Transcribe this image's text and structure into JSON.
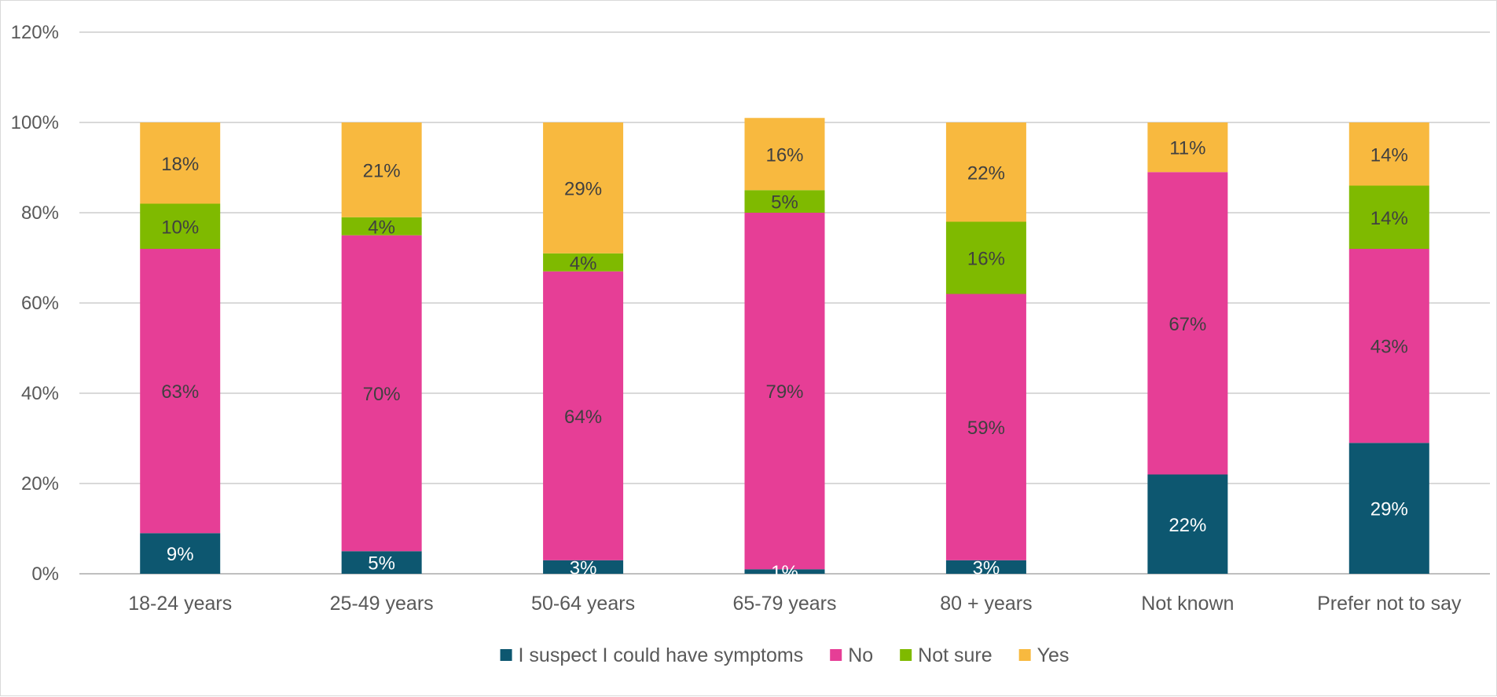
{
  "chart_data": {
    "type": "bar",
    "stacked": true,
    "categories": [
      "18-24 years",
      "25-49 years",
      "50-64 years",
      "65-79 years",
      "80 + years",
      "Not known",
      "Prefer not to say"
    ],
    "series": [
      {
        "name": "I suspect I could have symptoms",
        "color": "#0d5770",
        "label_color": "#ffffff",
        "values": [
          9,
          5,
          3,
          1,
          3,
          22,
          29
        ],
        "labels": [
          "9%",
          "5%",
          "3%",
          "1%",
          "3%",
          "22%",
          "29%"
        ]
      },
      {
        "name": "No",
        "color": "#e63e96",
        "label_color": "#404040",
        "values": [
          63,
          70,
          64,
          79,
          59,
          67,
          43
        ],
        "labels": [
          "63%",
          "70%",
          "64%",
          "79%",
          "59%",
          "67%",
          "43%"
        ]
      },
      {
        "name": "Not sure",
        "color": "#7fba00",
        "label_color": "#404040",
        "values": [
          10,
          4,
          4,
          5,
          16,
          0,
          14
        ],
        "labels": [
          "10%",
          "4%",
          "4%",
          "5%",
          "16%",
          "",
          "14%"
        ]
      },
      {
        "name": "Yes",
        "color": "#f8b93f",
        "label_color": "#404040",
        "values": [
          18,
          21,
          29,
          16,
          22,
          11,
          14
        ],
        "labels": [
          "18%",
          "21%",
          "29%",
          "16%",
          "22%",
          "11%",
          "14%"
        ]
      }
    ],
    "y_ticks": [
      "0%",
      "20%",
      "40%",
      "60%",
      "80%",
      "100%",
      "120%"
    ],
    "ylim": [
      0,
      120
    ],
    "grid": true,
    "legend_position": "bottom",
    "title": "",
    "xlabel": "",
    "ylabel": ""
  }
}
